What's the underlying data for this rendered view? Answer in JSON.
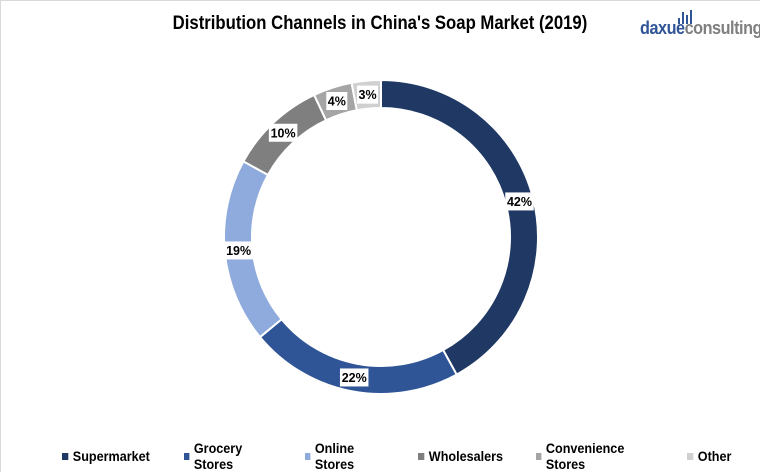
{
  "logo_text": "daxueconsulting",
  "chart_data": {
    "type": "pie",
    "donut": true,
    "title": "Distribution Channels in China's Soap Market (2019)",
    "categories": [
      "Supermarket",
      "Grocery Stores",
      "Online Stores",
      "Wholesalers",
      "Convenience Stores",
      "Other"
    ],
    "values": [
      42,
      22,
      19,
      10,
      4,
      3
    ],
    "labels": [
      "42%",
      "22%",
      "19%",
      "10%",
      "4%",
      "3%"
    ],
    "colors": [
      "#1f3864",
      "#2f5597",
      "#8faadc",
      "#7f7f7f",
      "#a5a5a5",
      "#d0d0d0"
    ],
    "legend_position": "bottom"
  }
}
